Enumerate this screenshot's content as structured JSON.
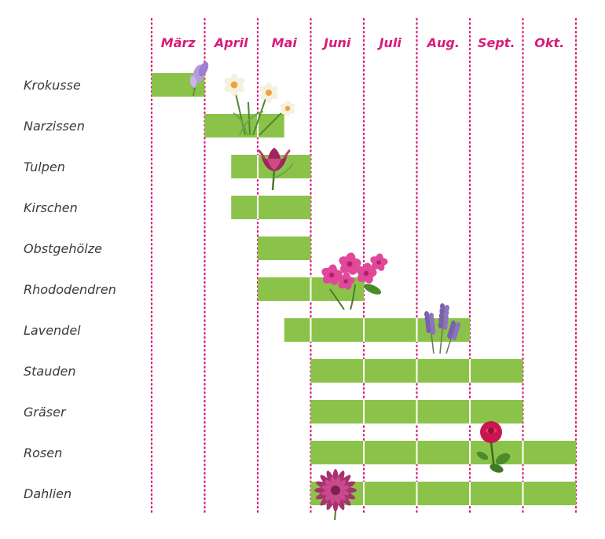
{
  "colors": {
    "accent": "#d81b7b",
    "bar": "#8bc34a",
    "label": "#3a3a3a",
    "gap": "#ffffff"
  },
  "chart_data": {
    "type": "gantt",
    "title": "",
    "months": [
      "März",
      "April",
      "Mai",
      "Juni",
      "Juli",
      "Aug.",
      "Sept.",
      "Okt."
    ],
    "rows": [
      {
        "name": "Krokusse",
        "start": 0,
        "end": 1,
        "icon": "crocus-icon"
      },
      {
        "name": "Narzissen",
        "start": 1,
        "end": 2.5,
        "icon": "daffodil-icon"
      },
      {
        "name": "Tulpen",
        "start": 1.5,
        "end": 3,
        "icon": "tulip-icon"
      },
      {
        "name": "Kirschen",
        "start": 1.5,
        "end": 3,
        "icon": ""
      },
      {
        "name": "Obstgehölze",
        "start": 2,
        "end": 3,
        "icon": ""
      },
      {
        "name": "Rhododendren",
        "start": 2,
        "end": 4,
        "icon": "rhododendron-icon"
      },
      {
        "name": "Lavendel",
        "start": 2.5,
        "end": 6,
        "icon": "lavender-icon"
      },
      {
        "name": "Stauden",
        "start": 3,
        "end": 7,
        "icon": ""
      },
      {
        "name": "Gräser",
        "start": 3,
        "end": 7,
        "icon": ""
      },
      {
        "name": "Rosen",
        "start": 3,
        "end": 8,
        "icon": "rose-icon"
      },
      {
        "name": "Dahlien",
        "start": 3,
        "end": 8,
        "icon": "dahlia-icon"
      }
    ]
  }
}
